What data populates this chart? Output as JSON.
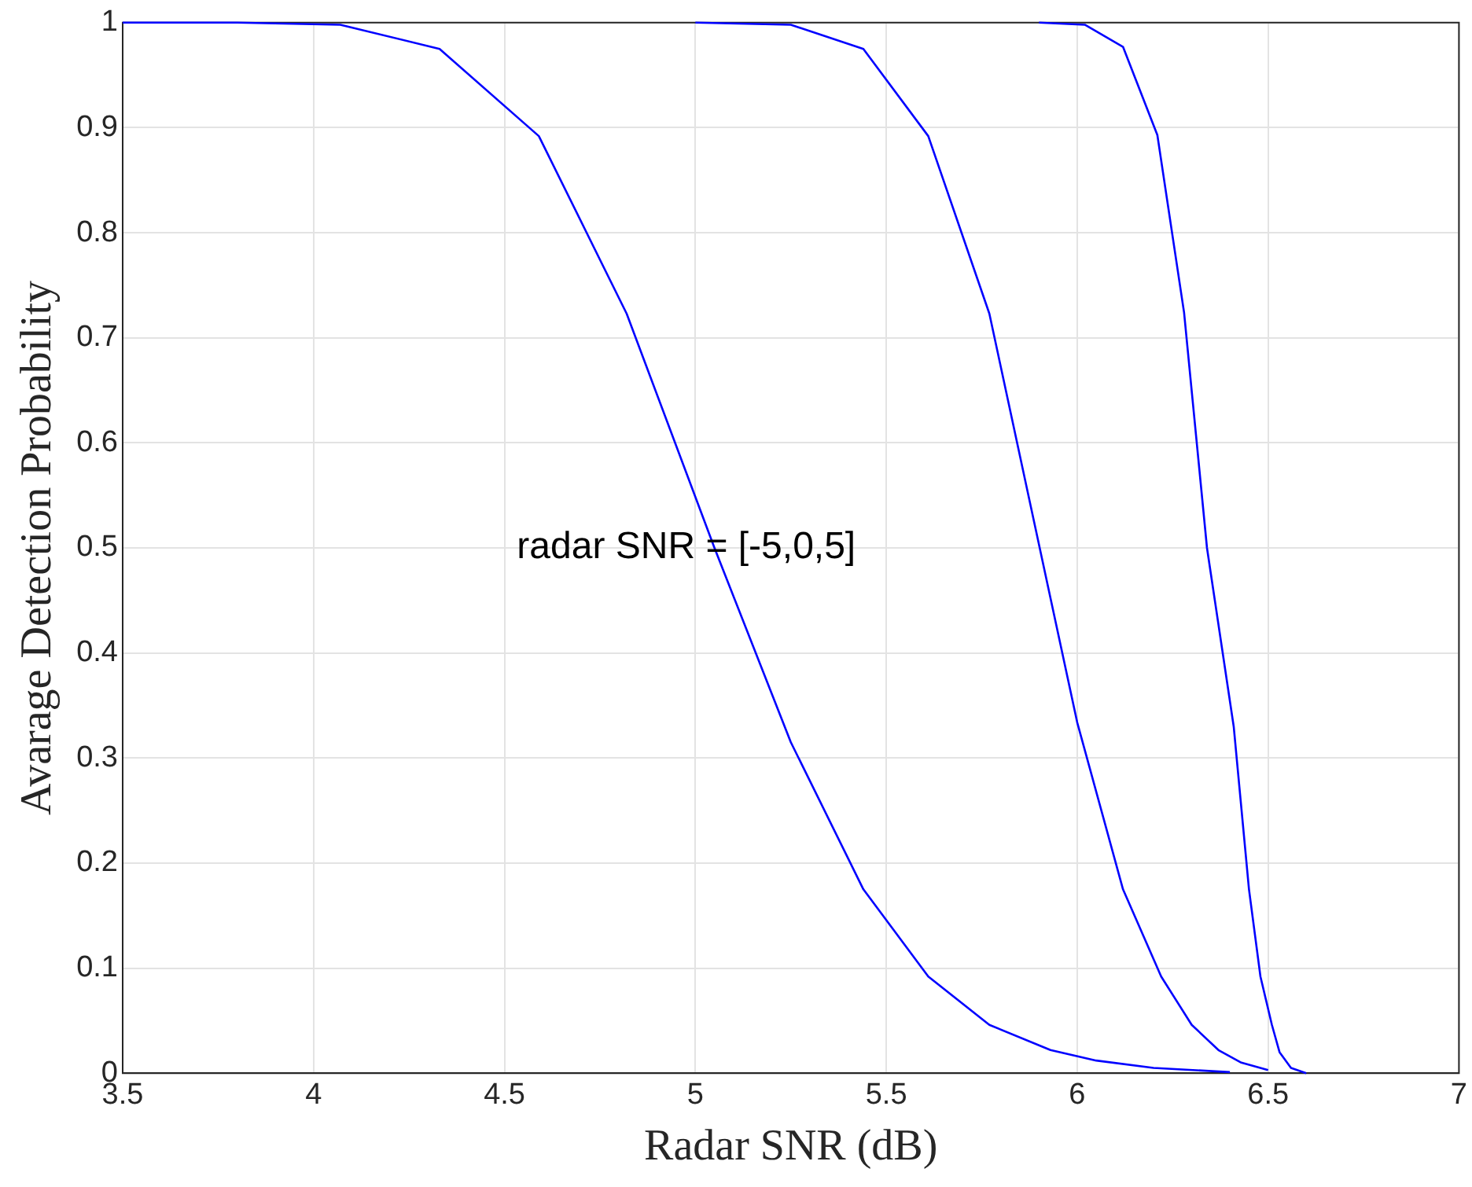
{
  "chart_data": {
    "type": "line",
    "xlabel": "Radar SNR (dB)",
    "ylabel": "Avarage Detection Probability",
    "annotations": [
      "radar SNR = [-5,0,5]"
    ],
    "xlim": [
      3.5,
      7
    ],
    "xticks": [
      3.5,
      4,
      4.5,
      5,
      5.5,
      6,
      6.5,
      7
    ],
    "ylim": [
      0,
      1
    ],
    "yticks": [
      0,
      0.1,
      0.2,
      0.3,
      0.4,
      0.5,
      0.6,
      0.7,
      0.8,
      0.9,
      1
    ],
    "grid": true,
    "marker": "none",
    "line_style": "solid",
    "series": [
      {
        "color": "#0000ff",
        "x": [
          3.5,
          3.8,
          4.07,
          4.33,
          4.59,
          4.82,
          5.05,
          5.25,
          5.44,
          5.61,
          5.77,
          5.93,
          6.05,
          6.2,
          6.4
        ],
        "values": [
          1,
          1,
          0.998,
          0.975,
          0.892,
          0.723,
          0.5,
          0.315,
          0.175,
          0.092,
          0.046,
          0.022,
          0.012,
          0.005,
          0.001
        ]
      },
      {
        "color": "#0000ff",
        "x": [
          5.0,
          5.25,
          5.44,
          5.61,
          5.77,
          5.89,
          6.0,
          6.12,
          6.22,
          6.3,
          6.37,
          6.43,
          6.5
        ],
        "values": [
          1,
          0.998,
          0.975,
          0.892,
          0.723,
          0.52,
          0.334,
          0.175,
          0.092,
          0.046,
          0.022,
          0.01,
          0.003
        ]
      },
      {
        "color": "#0000ff",
        "x": [
          5.9,
          6.02,
          6.12,
          6.21,
          6.28,
          6.34,
          6.41,
          6.45,
          6.48,
          6.51,
          6.53,
          6.56,
          6.6
        ],
        "values": [
          1,
          0.998,
          0.977,
          0.893,
          0.724,
          0.5,
          0.33,
          0.175,
          0.092,
          0.046,
          0.02,
          0.005,
          0
        ]
      }
    ]
  }
}
